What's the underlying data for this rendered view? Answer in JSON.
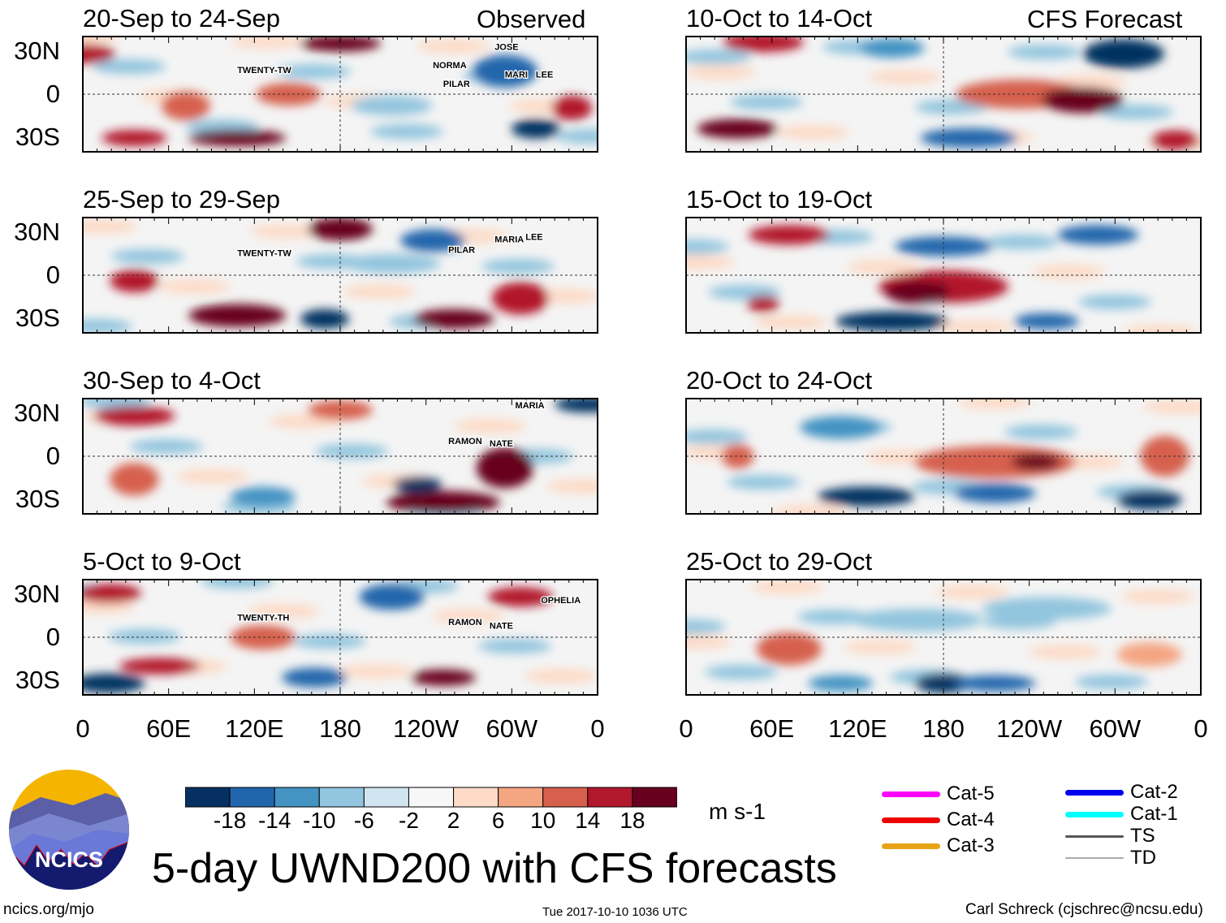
{
  "title": "5-day UWND200 with CFS forecasts",
  "column_labels": {
    "left": "Observed",
    "right": "CFS Forecast"
  },
  "chart_data": {
    "type": "heatmap",
    "title": "5-day UWND200 with CFS forecasts",
    "variable": "200-hPa zonal wind",
    "units": "m s-1",
    "lat_ticks": [
      "30N",
      "0",
      "30S"
    ],
    "lon_ticks": [
      "0",
      "60E",
      "120E",
      "180",
      "120W",
      "60W",
      "0"
    ],
    "colorbar": {
      "levels": [
        "-18",
        "-14",
        "-10",
        "-6",
        "-2",
        "2",
        "6",
        "10",
        "14",
        "18"
      ],
      "colors": [
        "#053061",
        "#2166ac",
        "#4393c3",
        "#92c5de",
        "#d1e5f0",
        "#f7f7f7",
        "#fddbc7",
        "#f4a582",
        "#d6604d",
        "#b2182b",
        "#67001f"
      ]
    },
    "panels": [
      {
        "title": "20-Sep to 24-Sep",
        "source": "Observed",
        "storms": [
          "TWENTY-TW",
          "NORMA",
          "PILAR",
          "JOSE",
          "MARIA",
          "LEE"
        ]
      },
      {
        "title": "25-Sep to 29-Sep",
        "source": "Observed",
        "storms": [
          "TWENTY-TW",
          "PILAR",
          "MARIA",
          "LEE"
        ]
      },
      {
        "title": "30-Sep to 4-Oct",
        "source": "Observed",
        "storms": [
          "MARIA",
          "RAMON",
          "NATE"
        ]
      },
      {
        "title": "5-Oct to 9-Oct",
        "source": "Observed",
        "storms": [
          "TWENTY-TH",
          "RAMON",
          "NATE",
          "OPHELIA"
        ]
      },
      {
        "title": "10-Oct to 14-Oct",
        "source": "CFS Forecast",
        "storms": []
      },
      {
        "title": "15-Oct to 19-Oct",
        "source": "CFS Forecast",
        "storms": []
      },
      {
        "title": "20-Oct to 24-Oct",
        "source": "CFS Forecast",
        "storms": []
      },
      {
        "title": "25-Oct to 29-Oct",
        "source": "CFS Forecast",
        "storms": []
      }
    ]
  },
  "storm_labels": {
    "p0": [
      "TWENTY-TW",
      "NORMA",
      "PILAR",
      "JOSE",
      "MARI",
      "LEE"
    ],
    "p1": [
      "TWENTY-TW",
      "PILAR",
      "MARIA",
      "LEE"
    ],
    "p2": [
      "MARIA",
      "RAM",
      "NATE"
    ],
    "p3": [
      "TWENTY-TH",
      "RAMO",
      "NATE",
      "OPHELIA"
    ]
  },
  "legend": {
    "items": [
      {
        "label": "Cat-5",
        "color": "#ff00ff"
      },
      {
        "label": "Cat-4",
        "color": "#ee0000"
      },
      {
        "label": "Cat-3",
        "color": "#e8a317"
      },
      {
        "label": "Cat-2",
        "color": "#0000ee"
      },
      {
        "label": "Cat-1",
        "color": "#00ffff"
      },
      {
        "label": "TS",
        "color": "#555555"
      },
      {
        "label": "TD",
        "color": "#aaaaaa"
      }
    ]
  },
  "logo": {
    "text": "NCICS"
  },
  "footer": {
    "url": "ncics.org/mjo",
    "timestamp": "Tue 2017-10-10 1036 UTC",
    "author": "Carl Schreck (cjschrec@ncsu.edu)"
  }
}
